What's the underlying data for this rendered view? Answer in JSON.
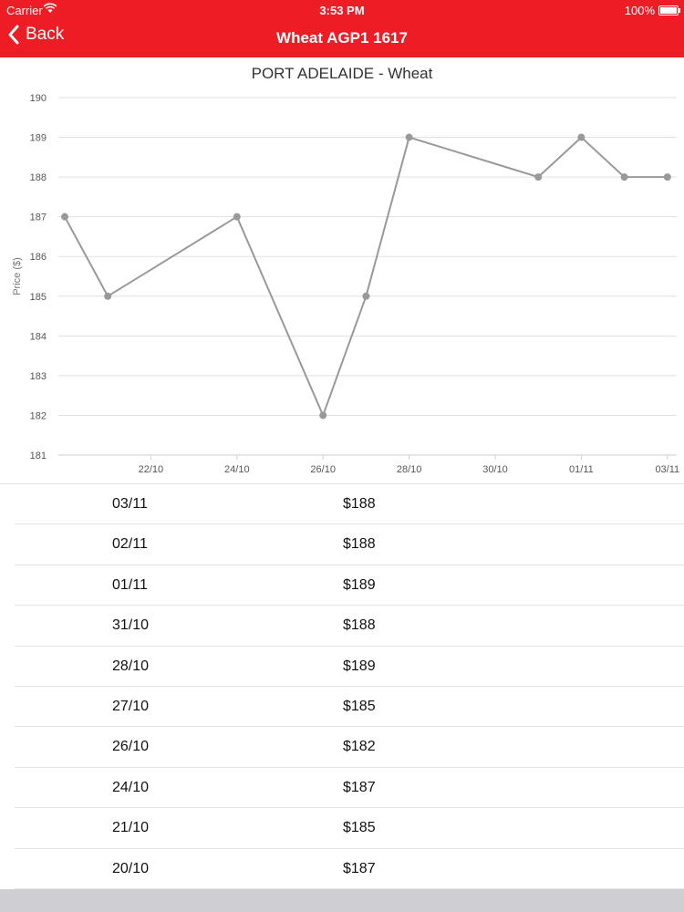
{
  "status_bar": {
    "carrier": "Carrier",
    "time": "3:53 PM",
    "battery": "100%"
  },
  "nav": {
    "back_label": "Back",
    "title": "Wheat AGP1 1617"
  },
  "accent_color": "#ee1c25",
  "chart_data": {
    "type": "line",
    "title": "PORT ADELAIDE - Wheat",
    "ylabel": "Price ($)",
    "xlabel": "",
    "ylim": [
      181,
      190
    ],
    "yticks": [
      "190",
      "189",
      "188",
      "187",
      "186",
      "185",
      "184",
      "183",
      "182",
      "181"
    ],
    "xticks": [
      "22/10",
      "24/10",
      "26/10",
      "28/10",
      "30/10",
      "01/11",
      "03/11"
    ],
    "series": [
      {
        "x": [
          "20/10",
          "21/10",
          "24/10",
          "26/10",
          "27/10",
          "28/10",
          "31/10",
          "01/11",
          "02/11",
          "03/11"
        ],
        "values": [
          187,
          185,
          187,
          182,
          185,
          189,
          188,
          189,
          188,
          188
        ]
      }
    ],
    "grid": true,
    "line_color": "#999999"
  },
  "table": {
    "rows": [
      {
        "date": "03/11",
        "price": "$188"
      },
      {
        "date": "02/11",
        "price": "$188"
      },
      {
        "date": "01/11",
        "price": "$189"
      },
      {
        "date": "31/10",
        "price": "$188"
      },
      {
        "date": "28/10",
        "price": "$189"
      },
      {
        "date": "27/10",
        "price": "$185"
      },
      {
        "date": "26/10",
        "price": "$182"
      },
      {
        "date": "24/10",
        "price": "$187"
      },
      {
        "date": "21/10",
        "price": "$185"
      },
      {
        "date": "20/10",
        "price": "$187"
      }
    ]
  }
}
